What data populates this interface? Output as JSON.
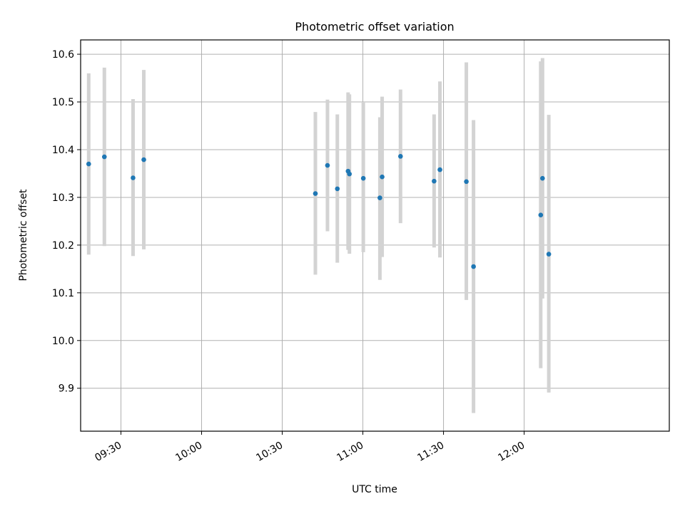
{
  "chart_data": {
    "type": "scatter",
    "title": "Photometric offset variation",
    "xlabel": "UTC time",
    "ylabel": "Photometric offset",
    "x_axis": {
      "kind": "time",
      "range": [
        "09:15",
        "12:54"
      ],
      "ticks": [
        "09:30",
        "10:00",
        "10:30",
        "11:00",
        "11:30",
        "12:00"
      ]
    },
    "y_axis": {
      "range": [
        9.81,
        10.63
      ],
      "ticks": [
        "9.9",
        "10.0",
        "10.1",
        "10.2",
        "10.3",
        "10.4",
        "10.5",
        "10.6"
      ]
    },
    "grid": true,
    "colors": {
      "point": "#1f77b4",
      "errorbar": "#d3d3d3",
      "grid": "#b0b0b0"
    },
    "series": [
      {
        "points": [
          {
            "x": "09:18:00",
            "y": 10.37,
            "y_low": 10.18,
            "y_high": 10.56
          },
          {
            "x": "09:23:50",
            "y": 10.385,
            "y_low": 10.198,
            "y_high": 10.572
          },
          {
            "x": "09:34:30",
            "y": 10.341,
            "y_low": 10.177,
            "y_high": 10.506
          },
          {
            "x": "09:38:30",
            "y": 10.379,
            "y_low": 10.191,
            "y_high": 10.567
          },
          {
            "x": "10:42:20",
            "y": 10.308,
            "y_low": 10.138,
            "y_high": 10.479
          },
          {
            "x": "10:46:50",
            "y": 10.367,
            "y_low": 10.229,
            "y_high": 10.505
          },
          {
            "x": "10:50:30",
            "y": 10.318,
            "y_low": 10.163,
            "y_high": 10.474
          },
          {
            "x": "10:54:30",
            "y": 10.355,
            "y_low": 10.19,
            "y_high": 10.52
          },
          {
            "x": "10:55:00",
            "y": 10.349,
            "y_low": 10.182,
            "y_high": 10.516
          },
          {
            "x": "11:00:10",
            "y": 10.34,
            "y_low": 10.185,
            "y_high": 10.5
          },
          {
            "x": "11:06:20",
            "y": 10.299,
            "y_low": 10.127,
            "y_high": 10.468
          },
          {
            "x": "11:07:10",
            "y": 10.343,
            "y_low": 10.175,
            "y_high": 10.511
          },
          {
            "x": "11:14:00",
            "y": 10.386,
            "y_low": 10.246,
            "y_high": 10.526
          },
          {
            "x": "11:26:30",
            "y": 10.334,
            "y_low": 10.195,
            "y_high": 10.474
          },
          {
            "x": "11:28:40",
            "y": 10.358,
            "y_low": 10.174,
            "y_high": 10.543
          },
          {
            "x": "11:38:30",
            "y": 10.333,
            "y_low": 10.085,
            "y_high": 10.583
          },
          {
            "x": "11:41:10",
            "y": 10.155,
            "y_low": 9.848,
            "y_high": 10.462
          },
          {
            "x": "12:06:10",
            "y": 10.263,
            "y_low": 9.942,
            "y_high": 10.585
          },
          {
            "x": "12:06:50",
            "y": 10.34,
            "y_low": 10.088,
            "y_high": 10.592
          },
          {
            "x": "12:09:10",
            "y": 10.181,
            "y_low": 9.891,
            "y_high": 10.473
          }
        ]
      }
    ]
  }
}
